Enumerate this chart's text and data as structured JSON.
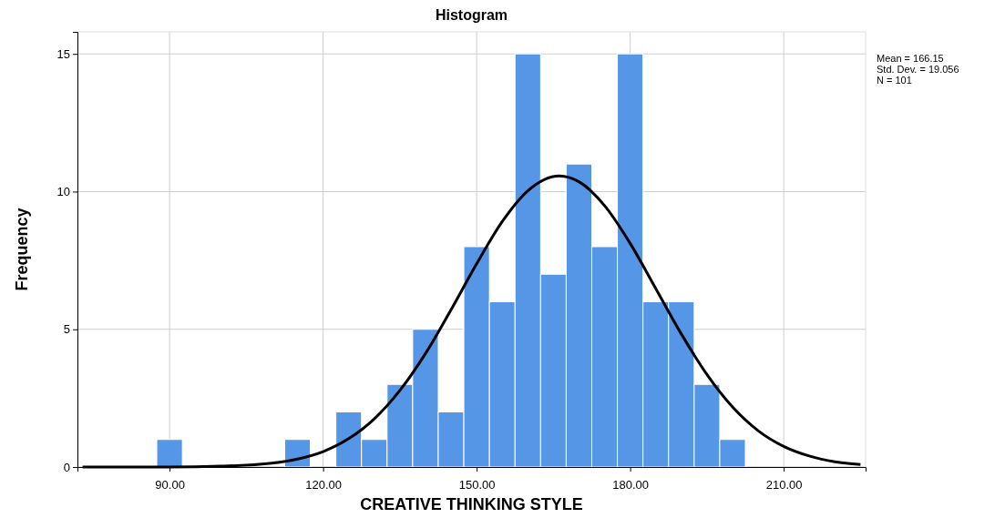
{
  "chart_data": {
    "type": "histogram",
    "title": "Histogram",
    "xlabel": "CREATIVE THINKING STYLE",
    "ylabel": "Frequency",
    "bins": [
      87.5,
      92.5,
      97.5,
      102.5,
      107.5,
      112.5,
      117.5,
      122.5,
      127.5,
      132.5,
      137.5,
      142.5,
      147.5,
      152.5,
      157.5,
      162.5,
      167.5,
      172.5,
      177.5,
      182.5,
      187.5,
      192.5,
      197.5,
      202.5
    ],
    "values": [
      1,
      0,
      0,
      0,
      0,
      1,
      0,
      2,
      1,
      3,
      5,
      2,
      8,
      6,
      15,
      7,
      11,
      8,
      15,
      6,
      6,
      3,
      1
    ],
    "color": "#5596e6",
    "series": [
      {
        "type": "line",
        "color": "#000000",
        "x": [
          73,
          80,
          90,
          100,
          110,
          115,
          120,
          125,
          130,
          135,
          140,
          145,
          150,
          155,
          160,
          166.15,
          170,
          175,
          180,
          185,
          190,
          195,
          200,
          205,
          210,
          215,
          220,
          225
        ],
        "values": [
          0,
          0,
          0,
          0.03,
          0.14,
          0.29,
          0.56,
          1.03,
          1.75,
          2.78,
          4.12,
          5.71,
          7.38,
          8.91,
          10.03,
          10.57,
          10.36,
          9.49,
          8.12,
          6.48,
          4.83,
          3.36,
          2.18,
          1.32,
          0.75,
          0.4,
          0.19,
          0.09
        ]
      }
    ],
    "xlim": [
      72,
      226
    ],
    "ylim": [
      0,
      15.8
    ],
    "xticks": [
      {
        "value": 90,
        "label": "90.00"
      },
      {
        "value": 120,
        "label": "120.00"
      },
      {
        "value": 150,
        "label": "150.00"
      },
      {
        "value": 180,
        "label": "180.00"
      },
      {
        "value": 210,
        "label": "210.00"
      }
    ],
    "yticks": [
      0,
      5,
      10,
      15
    ],
    "grid": true,
    "marker": "none",
    "line_style": "solid",
    "annotations": [
      "Mean = 166.15",
      "Std. Dev. = 19.056",
      "N = 101"
    ]
  }
}
